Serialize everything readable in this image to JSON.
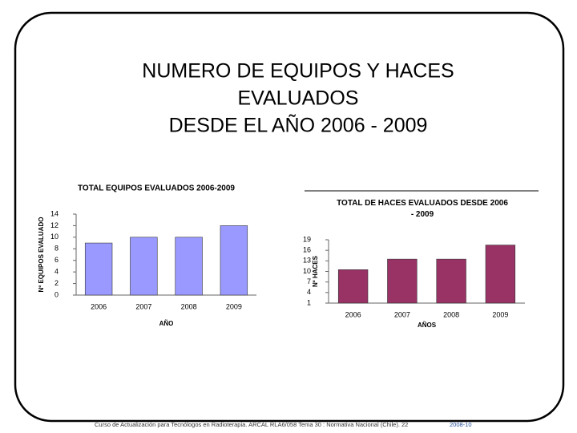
{
  "title_lines": [
    "NUMERO DE EQUIPOS Y HACES",
    "EVALUADOS",
    "DESDE EL AÑO 2006 - 2009"
  ],
  "chart_data": [
    {
      "type": "bar",
      "title": "TOTAL EQUIPOS EVALUADOS 2006-2009",
      "y_label": "Nº EQUIPOS EVALUADO",
      "x_label": "AÑO",
      "categories": [
        "2006",
        "2007",
        "2008",
        "2009"
      ],
      "values": [
        9,
        10,
        10,
        12
      ],
      "color": "#9999ff",
      "ylim": [
        0,
        14
      ],
      "yticks": [
        0,
        2,
        4,
        6,
        8,
        10,
        12,
        14
      ]
    },
    {
      "type": "bar",
      "title": "TOTAL DE HACES EVALUADOS DESDE 2006 - 2009",
      "y_label": "Nº HACES",
      "x_label": "AÑOS",
      "categories": [
        "2006",
        "2007",
        "2008",
        "2009"
      ],
      "values": [
        10.5,
        13.5,
        13.5,
        17.5
      ],
      "color": "#993366",
      "ylim": [
        1,
        19
      ],
      "yticks": [
        1,
        4,
        7,
        10,
        13,
        16,
        19
      ]
    }
  ],
  "footer": {
    "text": "Curso de Actualización para Tecnólogos en Radioterapia. ARCAL RLA6/058 Tema 30 : Normativa Nacional (Chile). 22",
    "highlight": "2008-10"
  }
}
